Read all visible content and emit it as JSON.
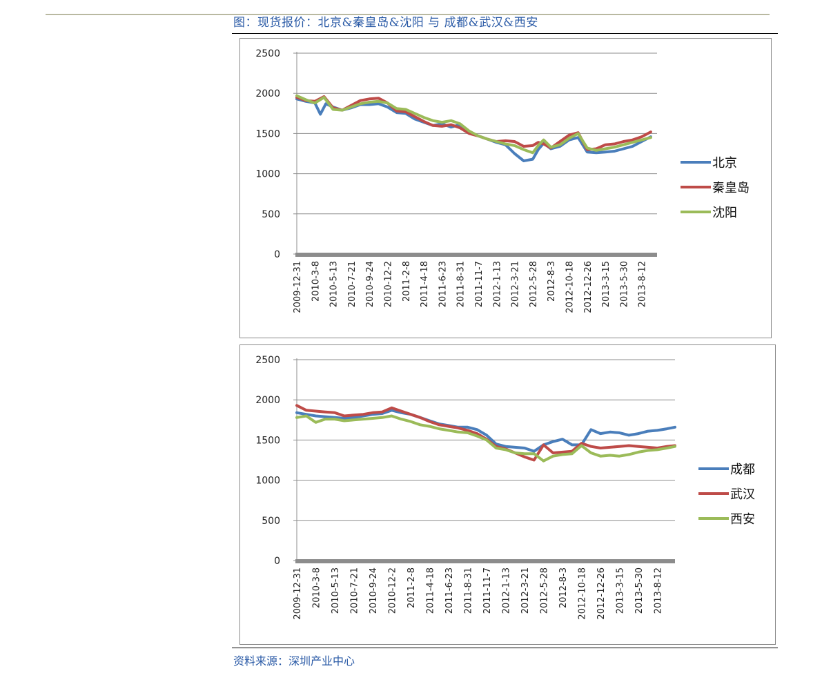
{
  "figure_title": "图：现货报价：北京&秦皇岛&沈阳 与 成都&武汉&西安",
  "source": "资料来源：深圳产业中心",
  "chart_data": [
    {
      "type": "line",
      "ylim": [
        0,
        2500
      ],
      "yticks": [
        0,
        500,
        1000,
        1500,
        2000,
        2500
      ],
      "grid": true,
      "legend_position": "right",
      "x_tick_labels": [
        "2009-12-31",
        "2010-3-8",
        "2010-5-13",
        "2010-7-21",
        "2010-9-24",
        "2010-12-2",
        "2011-2-8",
        "2011-4-18",
        "2011-6-23",
        "2011-8-31",
        "2011-11-7",
        "2012-1-13",
        "2012-3-21",
        "2012-5-28",
        "2012-8-3",
        "2012-10-18",
        "2012-12-26",
        "2013-3-15",
        "2013-5-30",
        "2013-8-12"
      ],
      "series": [
        {
          "name": "北京",
          "color": "#4a7ebb",
          "x": [
            0,
            0.5,
            1,
            1.3,
            1.6,
            2,
            2.5,
            3,
            3.5,
            4,
            4.5,
            5,
            5.5,
            6,
            6.5,
            7,
            7.5,
            8,
            8.5,
            9,
            9.5,
            10,
            10.5,
            11,
            11.5,
            12,
            12.5,
            13,
            13.3,
            13.6,
            14,
            14.5,
            15,
            15.5,
            16,
            16.5,
            17,
            17.5,
            18,
            18.5,
            19,
            19.5
          ],
          "values": [
            1930,
            1900,
            1880,
            1740,
            1870,
            1830,
            1790,
            1820,
            1860,
            1860,
            1870,
            1830,
            1760,
            1750,
            1680,
            1640,
            1600,
            1620,
            1580,
            1610,
            1520,
            1470,
            1430,
            1390,
            1360,
            1250,
            1160,
            1180,
            1300,
            1380,
            1310,
            1340,
            1420,
            1450,
            1270,
            1260,
            1270,
            1280,
            1310,
            1340,
            1400,
            1460
          ]
        },
        {
          "name": "秦皇岛",
          "color": "#be4b48",
          "x": [
            0,
            0.5,
            1,
            1.5,
            2,
            2.5,
            3,
            3.5,
            4,
            4.5,
            5,
            5.5,
            6,
            6.5,
            7,
            7.5,
            8,
            8.5,
            9,
            9.5,
            10,
            10.5,
            11,
            11.5,
            12,
            12.5,
            13,
            13.3,
            13.6,
            14,
            14.5,
            15,
            15.5,
            16,
            16.5,
            17,
            17.5,
            18,
            18.5,
            19,
            19.5
          ],
          "values": [
            1950,
            1910,
            1900,
            1960,
            1820,
            1790,
            1850,
            1910,
            1930,
            1940,
            1880,
            1780,
            1770,
            1710,
            1650,
            1600,
            1590,
            1610,
            1570,
            1500,
            1470,
            1430,
            1400,
            1410,
            1400,
            1340,
            1350,
            1390,
            1370,
            1320,
            1400,
            1480,
            1510,
            1300,
            1310,
            1360,
            1370,
            1400,
            1420,
            1460,
            1520
          ]
        },
        {
          "name": "沈阳",
          "color": "#9bbb59",
          "x": [
            0,
            0.5,
            1,
            1.5,
            2,
            2.5,
            3,
            3.5,
            4,
            4.5,
            5,
            5.5,
            6,
            6.5,
            7,
            7.5,
            8,
            8.5,
            9,
            9.5,
            10,
            10.5,
            11,
            11.5,
            12,
            12.5,
            13,
            13.3,
            13.6,
            14,
            14.5,
            15,
            15.5,
            16,
            16.5,
            17,
            17.5,
            18,
            18.5,
            19,
            19.5
          ],
          "values": [
            1970,
            1920,
            1880,
            1950,
            1800,
            1790,
            1830,
            1870,
            1890,
            1900,
            1880,
            1810,
            1800,
            1750,
            1700,
            1660,
            1640,
            1660,
            1620,
            1530,
            1470,
            1430,
            1400,
            1370,
            1350,
            1300,
            1260,
            1350,
            1420,
            1330,
            1360,
            1440,
            1500,
            1320,
            1290,
            1310,
            1330,
            1360,
            1390,
            1420,
            1450
          ]
        }
      ]
    },
    {
      "type": "line",
      "ylim": [
        0,
        2500
      ],
      "yticks": [
        0,
        500,
        1000,
        1500,
        2000,
        2500
      ],
      "grid": true,
      "legend_position": "right",
      "x_tick_labels": [
        "2009-12-31",
        "2010-3-8",
        "2010-5-13",
        "2010-7-21",
        "2010-9-24",
        "2010-12-2",
        "2011-2-8",
        "2011-4-18",
        "2011-6-23",
        "2011-8-31",
        "2011-11-7",
        "2012-1-13",
        "2012-3-21",
        "2012-5-28",
        "2012-8-3",
        "2012-10-18",
        "2012-12-26",
        "2013-3-15",
        "2013-5-30",
        "2013-8-12"
      ],
      "series": [
        {
          "name": "成都",
          "color": "#4a7ebb",
          "x": [
            0,
            0.5,
            1,
            1.5,
            2,
            2.5,
            3,
            3.5,
            4,
            4.5,
            5,
            5.5,
            6,
            6.5,
            7,
            7.5,
            8,
            8.5,
            9,
            9.5,
            10,
            10.5,
            11,
            11.5,
            12,
            12.5,
            13,
            13.5,
            14,
            14.5,
            15,
            15.5,
            16,
            16.5,
            17,
            17.5,
            18,
            18.5,
            19,
            19.5,
            20
          ],
          "values": [
            1840,
            1820,
            1800,
            1790,
            1780,
            1770,
            1780,
            1800,
            1820,
            1830,
            1870,
            1840,
            1820,
            1780,
            1740,
            1700,
            1680,
            1660,
            1660,
            1630,
            1560,
            1450,
            1420,
            1410,
            1400,
            1360,
            1440,
            1480,
            1510,
            1440,
            1440,
            1630,
            1580,
            1600,
            1590,
            1560,
            1580,
            1610,
            1620,
            1640,
            1660
          ]
        },
        {
          "name": "武汉",
          "color": "#be4b48",
          "x": [
            0,
            0.5,
            1,
            1.5,
            2,
            2.5,
            3,
            3.5,
            4,
            4.5,
            5,
            5.5,
            6,
            6.5,
            7,
            7.5,
            8,
            8.5,
            9,
            9.5,
            10,
            10.5,
            11,
            11.5,
            12,
            12.5,
            13,
            13.5,
            14,
            14.5,
            15,
            15.5,
            16,
            16.5,
            17,
            17.5,
            18,
            18.5,
            19,
            19.5,
            20
          ],
          "values": [
            1930,
            1870,
            1860,
            1850,
            1840,
            1800,
            1810,
            1820,
            1840,
            1850,
            1900,
            1860,
            1820,
            1780,
            1730,
            1690,
            1670,
            1650,
            1620,
            1580,
            1510,
            1420,
            1390,
            1340,
            1290,
            1250,
            1440,
            1340,
            1350,
            1360,
            1460,
            1420,
            1400,
            1410,
            1420,
            1430,
            1420,
            1410,
            1400,
            1420,
            1430
          ]
        },
        {
          "name": "西安",
          "color": "#9bbb59",
          "x": [
            0,
            0.5,
            1,
            1.5,
            2,
            2.5,
            3,
            3.5,
            4,
            4.5,
            5,
            5.5,
            6,
            6.5,
            7,
            7.5,
            8,
            8.5,
            9,
            9.5,
            10,
            10.5,
            11,
            11.5,
            12,
            12.5,
            13,
            13.5,
            14,
            14.5,
            15,
            15.5,
            16,
            16.5,
            17,
            17.5,
            18,
            18.5,
            19,
            19.5,
            20
          ],
          "values": [
            1780,
            1800,
            1720,
            1760,
            1760,
            1740,
            1750,
            1760,
            1770,
            1780,
            1800,
            1760,
            1730,
            1690,
            1670,
            1640,
            1620,
            1600,
            1590,
            1550,
            1500,
            1400,
            1380,
            1340,
            1330,
            1330,
            1240,
            1300,
            1320,
            1330,
            1430,
            1340,
            1300,
            1310,
            1300,
            1320,
            1350,
            1370,
            1380,
            1400,
            1420
          ]
        }
      ]
    }
  ]
}
